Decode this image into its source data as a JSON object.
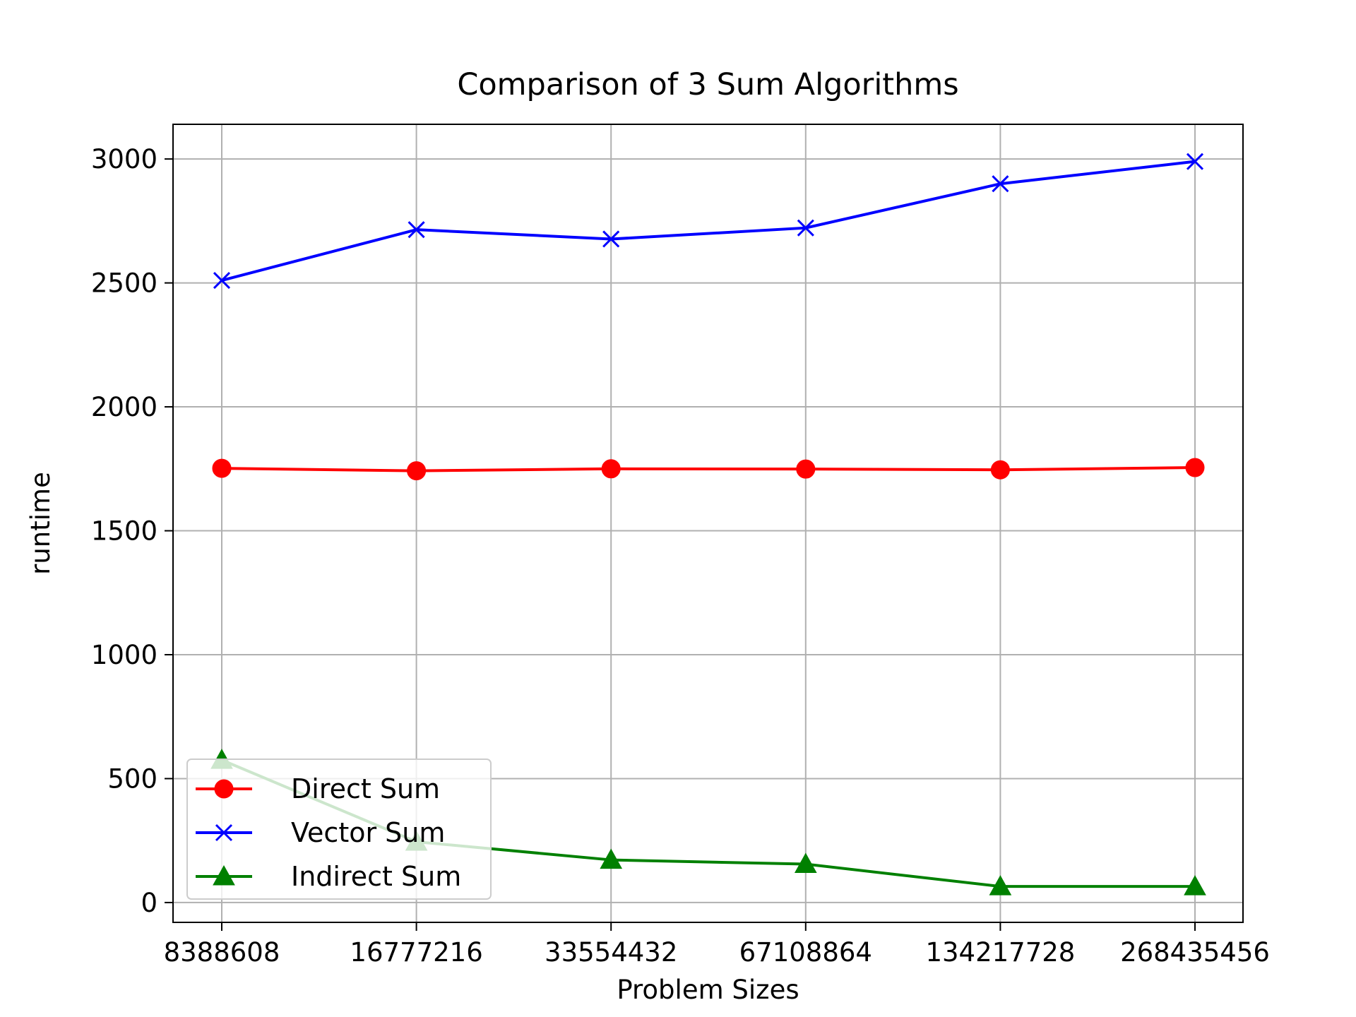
{
  "chart_data": {
    "type": "line",
    "title": "Comparison of 3 Sum Algorithms",
    "xlabel": "Problem Sizes",
    "ylabel": "runtime",
    "categories": [
      "8388608",
      "16777216",
      "33554432",
      "67108864",
      "134217728",
      "268435456"
    ],
    "ylim": [
      -80,
      3140
    ],
    "yticks": [
      0,
      500,
      1000,
      1500,
      2000,
      2500,
      3000
    ],
    "grid": true,
    "legend_position": "lower-left",
    "series": [
      {
        "name": "Direct Sum",
        "color": "#ff0000",
        "marker": "circle",
        "values": [
          1752,
          1742,
          1750,
          1749,
          1746,
          1755
        ]
      },
      {
        "name": "Vector Sum",
        "color": "#0000ff",
        "marker": "x",
        "values": [
          2510,
          2715,
          2677,
          2722,
          2900,
          2990
        ]
      },
      {
        "name": "Indirect Sum",
        "color": "#008000",
        "marker": "triangle",
        "values": [
          575,
          245,
          172,
          155,
          65,
          65
        ]
      }
    ]
  }
}
